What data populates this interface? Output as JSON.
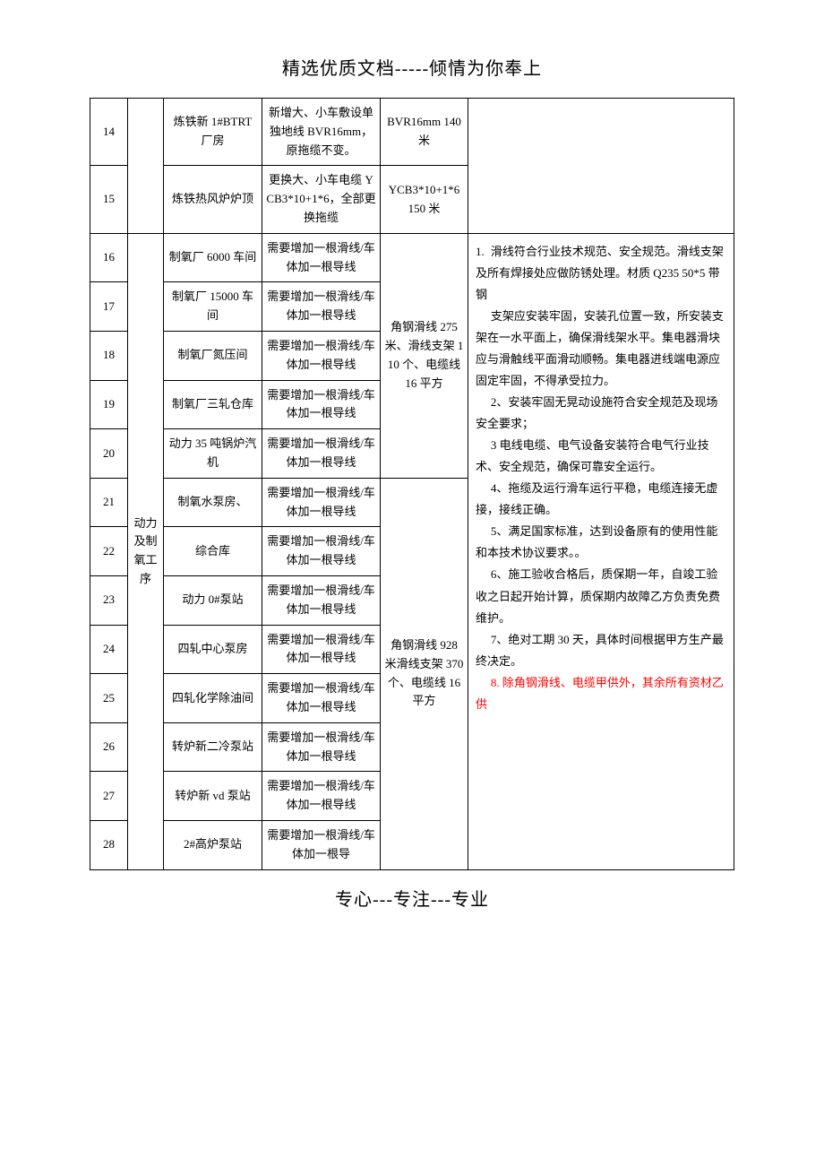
{
  "header": "精选优质文档-----倾情为你奉上",
  "footer": "专心---专注---专业",
  "dept_label": "动力及制氧工序",
  "material_block_a": "角钢滑线 275 米、滑线支架 110 个、电缆线 16 平方",
  "material_block_b": "角钢滑线 928 米滑线支架 370 个、电缆线 16 平方",
  "rows": {
    "r14": {
      "n": "14",
      "loc": "炼铁新 1#BTRT 厂房",
      "desc": "新增大、小车敷设单独地线 BVR16mm，原拖缆不变。",
      "mat": "BVR16mm 140 米"
    },
    "r15": {
      "n": "15",
      "loc": "炼铁热风炉炉顶",
      "desc": "更换大、小车电缆 YCB3*10+1*6，全部更换拖缆",
      "mat": "YCB3*10+1*6 150 米"
    },
    "r16": {
      "n": "16",
      "loc": "制氧厂 6000 车间",
      "desc": "需要增加一根滑线/车体加一根导线"
    },
    "r17": {
      "n": "17",
      "loc": "制氧厂 15000 车间",
      "desc": "需要增加一根滑线/车体加一根导线"
    },
    "r18": {
      "n": "18",
      "loc": "制氧厂氮压间",
      "desc": "需要增加一根滑线/车体加一根导线"
    },
    "r19": {
      "n": "19",
      "loc": "制氧厂三轧仓库",
      "desc": "需要增加一根滑线/车体加一根导线"
    },
    "r20": {
      "n": "20",
      "loc": "动力 35 吨锅炉汽机",
      "desc": "需要增加一根滑线/车体加一根导线"
    },
    "r21": {
      "n": "21",
      "loc": "制氧水泵房、",
      "desc": "需要增加一根滑线/车体加一根导线"
    },
    "r22": {
      "n": "22",
      "loc": "综合库",
      "desc": "需要增加一根滑线/车体加一根导线"
    },
    "r23": {
      "n": "23",
      "loc": "动力 0#泵站",
      "desc": "需要增加一根滑线/车体加一根导线"
    },
    "r24": {
      "n": "24",
      "loc": "四轧中心泵房",
      "desc": "需要增加一根滑线/车体加一根导线"
    },
    "r25": {
      "n": "25",
      "loc": "四轧化学除油间",
      "desc": "需要增加一根滑线/车体加一根导线"
    },
    "r26": {
      "n": "26",
      "loc": "转炉新二冷泵站",
      "desc": "需要增加一根滑线/车体加一根导线"
    },
    "r27": {
      "n": "27",
      "loc": "转炉新 vd 泵站",
      "desc": "需要增加一根滑线/车体加一根导线"
    },
    "r28": {
      "n": "28",
      "loc": "2#高炉泵站",
      "desc": "需要增加一根滑线/车体加一根导"
    }
  },
  "notes": {
    "n1": "滑线符合行业技术规范、安全规范。滑线支架及所有焊接处应做防锈处理。材质 Q235 50*5 带钢",
    "n1b": "支架应安装牢固，安装孔位置一致，所安装支架在一水平面上，确保滑线架水平。集电器滑块应与滑触线平面滑动顺畅。集电器进线端电源应固定牢固，不得承受拉力。",
    "n2": "2、安装牢固无晃动设施符合安全规范及现场安全要求；",
    "n3": "3 电线电缆、电气设备安装符合电气行业技术、安全规范，确保可靠安全运行。",
    "n4": "4、拖缆及运行滑车运行平稳，电缆连接无虚接，接线正确。",
    "n5": "5、满足国家标准，达到设备原有的使用性能和本技术协议要求。。",
    "n6": "6、施工验收合格后，质保期一年，自竣工验收之日起开始计算，质保期内故障乙方负责免费维护。",
    "n7": "7、绝对工期 30 天，具体时间根据甲方生产最终决定。",
    "n8": "8. 除角钢滑线、电缆甲供外，其余所有资材乙供"
  },
  "notes_prefix": "1."
}
